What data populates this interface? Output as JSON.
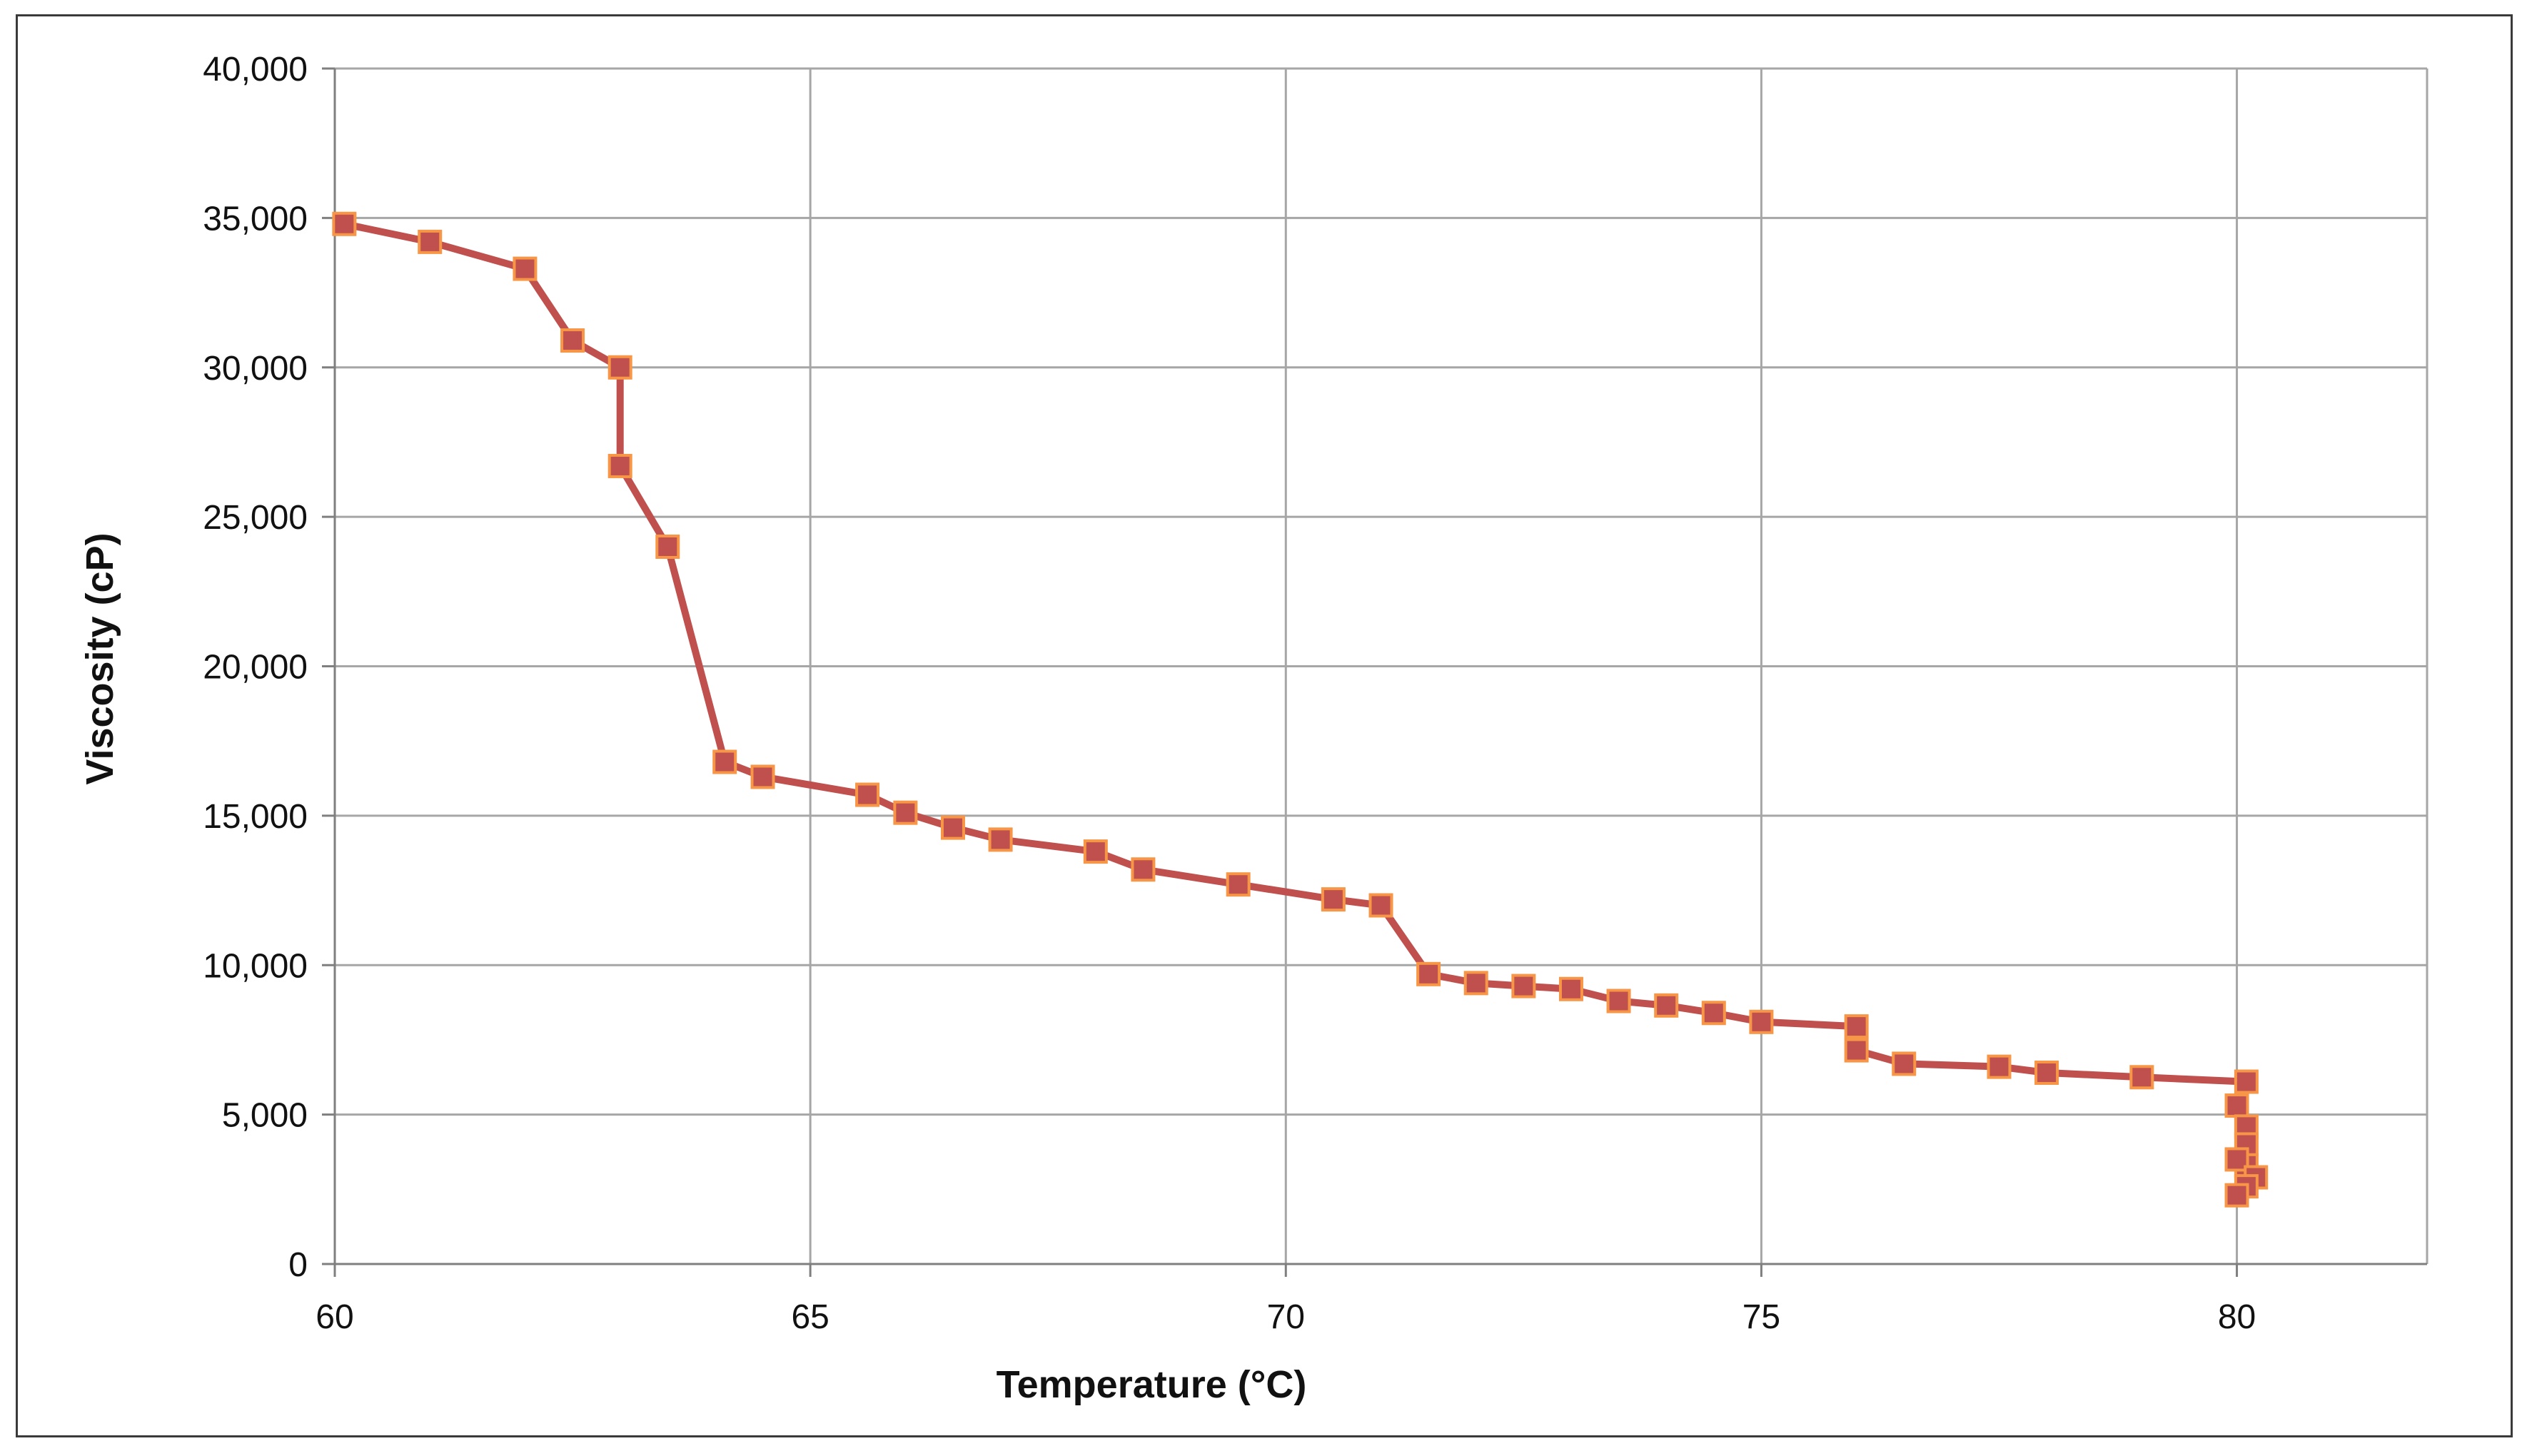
{
  "chart_data": {
    "type": "line",
    "title": "",
    "xlabel": "Temperature (°C)",
    "ylabel": "Viscosity  (cP)",
    "xlim": [
      60,
      82
    ],
    "ylim": [
      0,
      40000
    ],
    "x_ticks": [
      60,
      65,
      70,
      75,
      80
    ],
    "x_tick_labels": [
      "60",
      "65",
      "70",
      "75",
      "80"
    ],
    "y_ticks": [
      0,
      5000,
      10000,
      15000,
      20000,
      25000,
      30000,
      35000,
      40000
    ],
    "y_tick_labels": [
      "0",
      "5,000",
      "10,000",
      "15,000",
      "20,000",
      "25,000",
      "30,000",
      "35,000",
      "40,000"
    ],
    "grid": true,
    "legend": "none",
    "colors": {
      "line": "#c0504d",
      "marker_fill": "#c0504d",
      "marker_edge": "#f79646",
      "grid": "#a6a6a6",
      "axis": "#7f7f7f"
    },
    "series": [
      {
        "x": [
          60.1,
          61.0,
          62.0,
          62.5,
          63.0,
          63.0,
          63.5,
          64.1,
          64.5,
          65.6,
          66.0,
          66.5,
          67.0,
          68.0,
          68.5,
          69.5,
          70.5,
          71.0,
          71.5,
          72.0,
          72.5,
          73.0,
          73.5,
          74.0,
          74.5,
          75.0,
          76.0,
          76.0,
          76.5,
          77.5,
          78.0,
          79.0,
          80.1,
          80.0,
          80.1,
          80.1,
          80.1,
          80.0,
          80.2,
          80.1,
          80.0
        ],
        "y": [
          34800,
          34200,
          33300,
          30900,
          30000,
          26700,
          24000,
          16800,
          16300,
          15700,
          15100,
          14600,
          14200,
          13800,
          13200,
          12700,
          12200,
          12000,
          9700,
          9400,
          9300,
          9200,
          8800,
          8650,
          8400,
          8100,
          7950,
          7150,
          6700,
          6600,
          6400,
          6250,
          6100,
          5300,
          4600,
          4000,
          3300,
          3500,
          2900,
          2600,
          2300
        ]
      }
    ]
  }
}
